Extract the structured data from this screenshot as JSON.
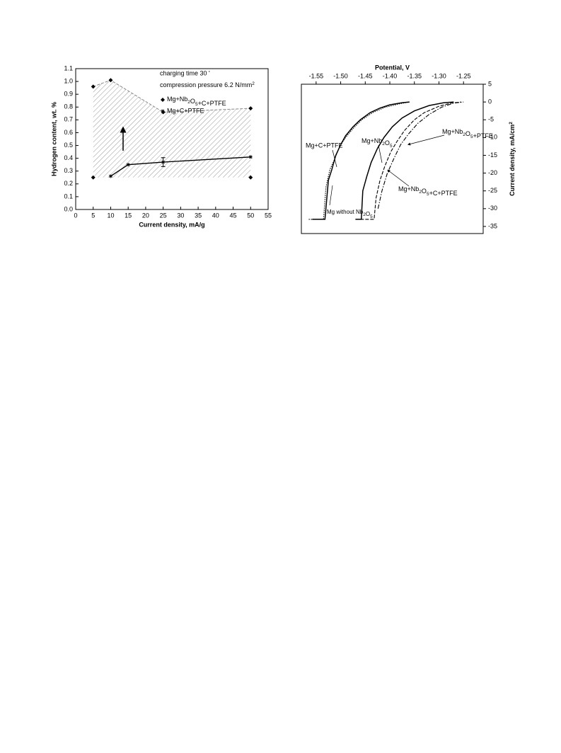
{
  "chart_data": [
    {
      "type": "scatter",
      "xlabel": "Current density, mA/g",
      "ylabel": "Hydrogen content, wt. %",
      "annotations": [
        "charging time 30 '",
        "compression pressure 6.2 N/mm2"
      ],
      "xlim": [
        0,
        55
      ],
      "xticks": [
        0,
        5,
        10,
        15,
        20,
        25,
        30,
        35,
        40,
        45,
        50,
        55
      ],
      "ylim": [
        0,
        1.1
      ],
      "yticks": [
        {
          "value": 0,
          "label": "0.0"
        },
        0.1,
        0.2,
        0.3,
        0.4,
        0.5,
        0.6,
        0.7,
        0.8,
        0.9,
        {
          "value": 1,
          "label": "1.0"
        },
        1.1
      ],
      "legend": "upper center",
      "series": [
        {
          "name": "Mg+Nb2O5+C+PTFE",
          "color": "#000000",
          "marker": "diamond",
          "x": [
            5,
            10,
            25,
            50,
            5,
            50
          ],
          "values": [
            0.96,
            1.01,
            0.76,
            0.79,
            0.25,
            0.25
          ]
        },
        {
          "name": "Mg+C+PTFE",
          "color": "#000000",
          "marker": "star",
          "x": [
            10,
            15,
            25,
            50
          ],
          "values": [
            0.26,
            0.35,
            0.37,
            0.41
          ],
          "errors": [
            null,
            null,
            0.035,
            null
          ]
        }
      ]
    },
    {
      "type": "line",
      "xlabel": "Potential, V",
      "ylabel": "Current density, mA/cm2",
      "xlim": [
        -1.58,
        -1.21
      ],
      "xticks": [
        -1.55,
        {
          "value": -1.5,
          "label": "-1.50"
        },
        -1.45,
        {
          "value": -1.4,
          "label": "-1.40"
        },
        -1.35,
        {
          "value": -1.3,
          "label": "-1.30"
        },
        -1.25
      ],
      "ylim": [
        -37,
        5
      ],
      "yticks": [
        -35,
        -30,
        -25,
        -20,
        -15,
        -10,
        -5,
        0,
        5
      ],
      "series": [
        {
          "name": "Mg without Nb2O5",
          "color": "#000000",
          "dash": "dotted",
          "x": [
            -1.565,
            -1.535,
            -1.53,
            -1.522,
            -1.512,
            -1.502,
            -1.49,
            -1.475,
            -1.457,
            -1.435,
            -1.41,
            -1.38,
            -1.36
          ],
          "values": [
            -33,
            -33,
            -24,
            -19,
            -16,
            -12.5,
            -10,
            -7.5,
            -5,
            -3,
            -1.5,
            -0.5,
            0
          ]
        },
        {
          "name": "Mg+C+PTFE",
          "color": "#000000",
          "dash": "solid",
          "x": [
            -1.558,
            -1.532,
            -1.525,
            -1.518,
            -1.51,
            -1.5,
            -1.49,
            -1.475,
            -1.46,
            -1.44,
            -1.42,
            -1.4,
            -1.375,
            -1.36
          ],
          "values": [
            -33,
            -33,
            -22,
            -19,
            -15,
            -12,
            -9.5,
            -7,
            -5,
            -3,
            -1.7,
            -0.8,
            -0.2,
            0
          ]
        },
        {
          "name": "Mg+Nb2O5",
          "color": "#000000",
          "dash": "solid",
          "x": [
            -1.47,
            -1.458,
            -1.455,
            -1.447,
            -1.438,
            -1.425,
            -1.412,
            -1.395,
            -1.375,
            -1.35,
            -1.32,
            -1.29,
            -1.27
          ],
          "values": [
            -33,
            -33,
            -25,
            -21,
            -17,
            -13,
            -10,
            -7,
            -4.5,
            -2.5,
            -1,
            -0.2,
            0
          ]
        },
        {
          "name": "Mg+Nb2O5+PTFE",
          "color": "#000000",
          "dash": "dashed",
          "x": [
            -1.46,
            -1.432,
            -1.428,
            -1.42,
            -1.41,
            -1.398,
            -1.385,
            -1.37,
            -1.35,
            -1.33,
            -1.3,
            -1.275,
            -1.255
          ],
          "values": [
            -33,
            -33,
            -27,
            -22,
            -18,
            -14,
            -11,
            -8,
            -5,
            -3,
            -1.2,
            -0.3,
            0
          ]
        },
        {
          "name": "Mg+Nb2O5+C+PTFE",
          "color": "#000000",
          "dash": "dashdot",
          "x": [
            -1.424,
            -1.416,
            -1.405,
            -1.392,
            -1.378,
            -1.362,
            -1.343,
            -1.32,
            -1.295,
            -1.27,
            -1.25
          ],
          "values": [
            -30,
            -25,
            -20,
            -16,
            -12,
            -9,
            -6,
            -3.5,
            -1.5,
            -0.3,
            0
          ]
        }
      ]
    }
  ]
}
